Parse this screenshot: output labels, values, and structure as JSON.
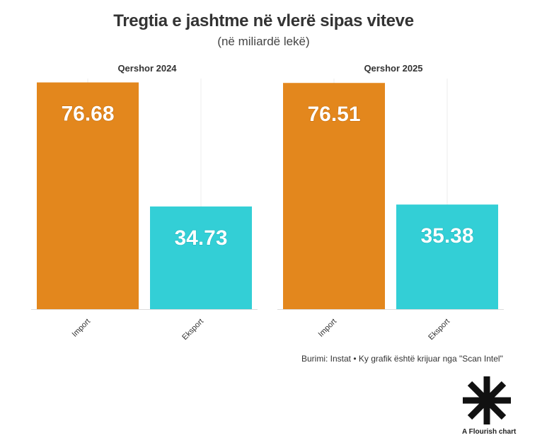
{
  "chart_data": {
    "type": "bar",
    "title": "Tregtia e jashtme në vlerë sipas viteve",
    "subtitle": "(në miliardë lekë)",
    "categories": [
      "Import",
      "Eksport"
    ],
    "panels": [
      {
        "title": "Qershor 2024",
        "values": [
          76.68,
          34.73
        ]
      },
      {
        "title": "Qershor 2025",
        "values": [
          76.51,
          35.38
        ]
      }
    ],
    "ylim": [
      0,
      78
    ],
    "colors": {
      "Import": "#e3871d",
      "Eksport": "#33cfd6"
    },
    "grid": true,
    "legend": "none"
  },
  "footer": {
    "source": "Burimi: Instat • Ky grafik është krijuar nga \"Scan Intel\"",
    "flourish": "A Flourish chart",
    "flourish_icon": "flourish-asterisk-icon"
  }
}
